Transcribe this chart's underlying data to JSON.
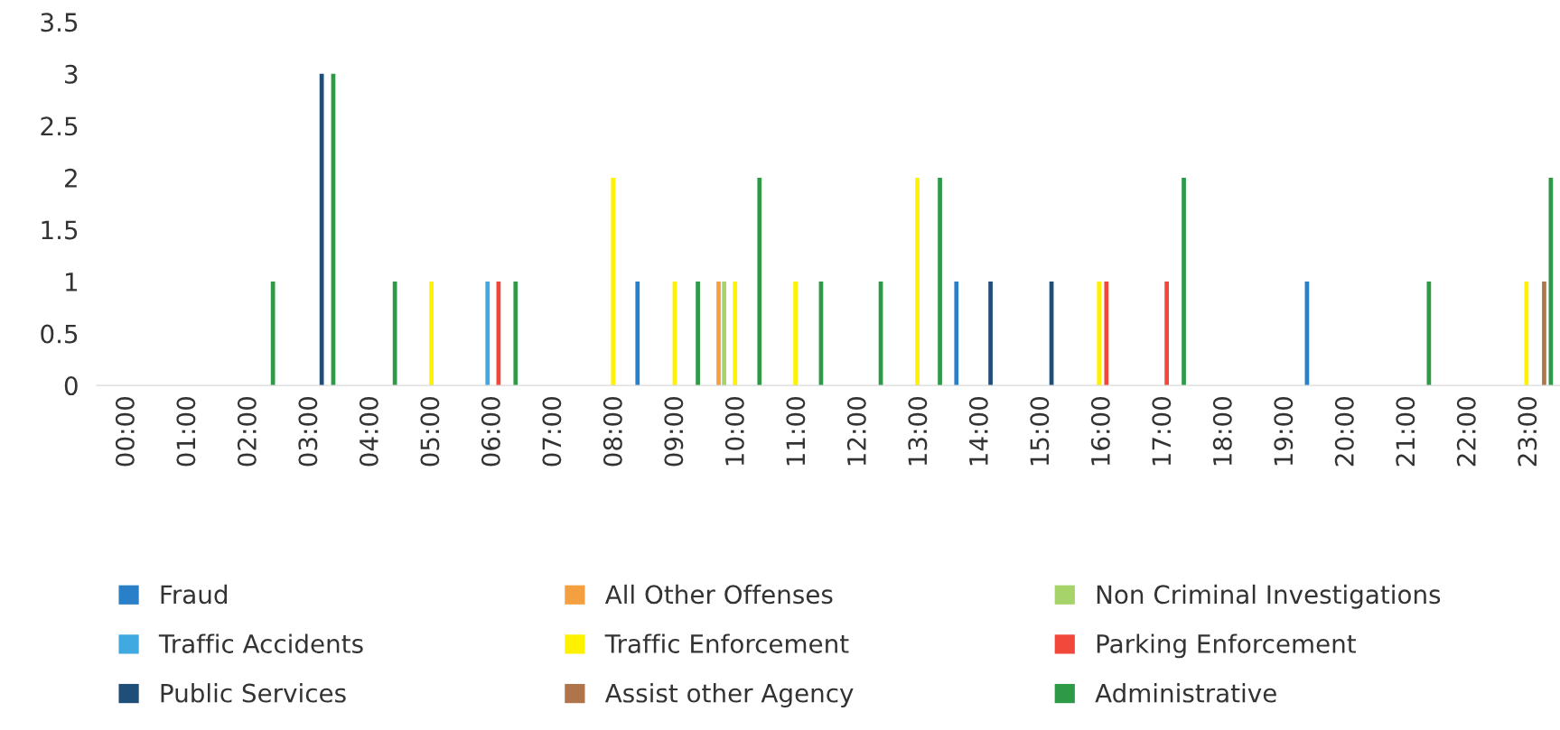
{
  "chart_data": {
    "type": "bar",
    "xlim": [
      -0.5,
      23.5
    ],
    "xticks": [
      {
        "value": 0,
        "label": "00:00"
      },
      {
        "value": 1,
        "label": "01:00"
      },
      {
        "value": 2,
        "label": "02:00"
      },
      {
        "value": 3,
        "label": "03:00"
      },
      {
        "value": 4,
        "label": "04:00"
      },
      {
        "value": 5,
        "label": "05:00"
      },
      {
        "value": 6,
        "label": "06:00"
      },
      {
        "value": 7,
        "label": "07:00"
      },
      {
        "value": 8,
        "label": "08:00"
      },
      {
        "value": 9,
        "label": "09:00"
      },
      {
        "value": 10,
        "label": "10:00"
      },
      {
        "value": 11,
        "label": "11:00"
      },
      {
        "value": 12,
        "label": "12:00"
      },
      {
        "value": 13,
        "label": "13:00"
      },
      {
        "value": 14,
        "label": "14:00"
      },
      {
        "value": 15,
        "label": "15:00"
      },
      {
        "value": 16,
        "label": "16:00"
      },
      {
        "value": 17,
        "label": "17:00"
      },
      {
        "value": 18,
        "label": "18:00"
      },
      {
        "value": 19,
        "label": "19:00"
      },
      {
        "value": 20,
        "label": "20:00"
      },
      {
        "value": 21,
        "label": "21:00"
      },
      {
        "value": 22,
        "label": "22:00"
      },
      {
        "value": 23,
        "label": "23:00"
      }
    ],
    "ylim": [
      0,
      3.5
    ],
    "yticks": [
      0,
      0.5,
      1,
      1.5,
      2,
      2.5,
      3,
      3.5
    ],
    "grid": false,
    "legend": "bottom",
    "series": [
      {
        "name": "Fraud",
        "color": "#2a7fc9",
        "x": [
          8.37,
          13.6,
          19.35
        ],
        "values": [
          1,
          1,
          1
        ]
      },
      {
        "name": "All Other Offenses",
        "color": "#f5a040",
        "x": [
          9.7
        ],
        "values": [
          1
        ]
      },
      {
        "name": "Non Criminal Investigations",
        "color": "#a6d46a",
        "x": [
          9.79
        ],
        "values": [
          1
        ]
      },
      {
        "name": "Traffic Accidents",
        "color": "#3fa9e0",
        "x": [
          5.91
        ],
        "values": [
          1
        ]
      },
      {
        "name": "Traffic Enforcement",
        "color": "#fff200",
        "x": [
          4.99,
          7.97,
          8.98,
          9.97,
          10.96,
          12.96,
          15.94,
          22.95
        ],
        "values": [
          1,
          2,
          1,
          1,
          1,
          2,
          1,
          1
        ]
      },
      {
        "name": "Parking Enforcement",
        "color": "#f2483b",
        "x": [
          6.09,
          16.06,
          17.05
        ],
        "values": [
          1,
          1,
          1
        ]
      },
      {
        "name": "Public Services",
        "color": "#1f4e79",
        "x": [
          3.19,
          14.16,
          15.16
        ],
        "values": [
          3,
          1,
          1
        ]
      },
      {
        "name": "Assist other Agency",
        "color": "#b0744a",
        "x": [
          23.24
        ],
        "values": [
          1
        ]
      },
      {
        "name": "Administrative",
        "color": "#2e9a47",
        "x": [
          2.39,
          3.38,
          4.39,
          6.37,
          9.36,
          10.37,
          11.38,
          12.36,
          13.33,
          17.33,
          21.35,
          23.35
        ],
        "values": [
          1,
          3,
          1,
          1,
          1,
          2,
          1,
          1,
          2,
          2,
          1,
          2
        ]
      }
    ]
  }
}
